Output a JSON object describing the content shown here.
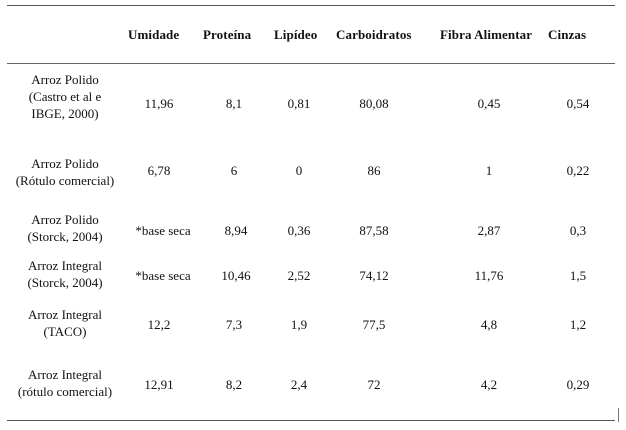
{
  "table": {
    "headers": {
      "col1": "Umidade",
      "col2": "Proteína",
      "col3": "Lipídeo",
      "col4": "Carboidratos",
      "col5": "Fibra Alimentar",
      "col6": "Cinzas"
    },
    "rows": [
      {
        "label_lines": [
          "Arroz Polido",
          "(Castro et al e",
          "IBGE, 2000)"
        ],
        "values": [
          "11,96",
          "8,1",
          "0,81",
          "80,08",
          "0,45",
          "0,54"
        ]
      },
      {
        "label_lines": [
          "Arroz Polido",
          "(Rótulo comercial)"
        ],
        "values": [
          "6,78",
          "6",
          "0",
          "86",
          "1",
          "0,22"
        ]
      },
      {
        "label_lines": [
          "Arroz Polido",
          "(Storck, 2004)"
        ],
        "values": [
          "*base seca",
          "8,94",
          "0,36",
          "87,58",
          "2,87",
          "0,3"
        ]
      },
      {
        "label_lines": [
          "Arroz Integral",
          "(Storck, 2004)"
        ],
        "values": [
          "*base seca",
          "10,46",
          "2,52",
          "74,12",
          "11,76",
          "1,5"
        ]
      },
      {
        "label_lines": [
          "Arroz Integral",
          "(TACO)"
        ],
        "values": [
          "12,2",
          "7,3",
          "1,9",
          "77,5",
          "4,8",
          "1,2"
        ]
      },
      {
        "label_lines": [
          "Arroz Integral",
          "(rótulo comercial)"
        ],
        "values": [
          "12,91",
          "8,2",
          "2,4",
          "72",
          "4,2",
          "0,29"
        ]
      }
    ]
  }
}
